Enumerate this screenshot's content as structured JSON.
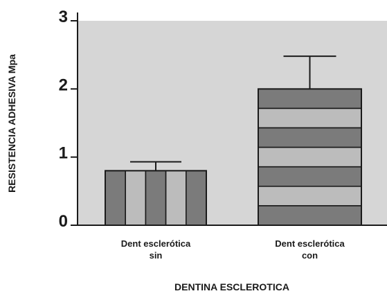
{
  "chart_data": {
    "type": "bar",
    "title": "",
    "xlabel": "DENTINA ESCLEROTICA",
    "ylabel": "RESISTENCIA ADHESIVA Mpa",
    "ylim": [
      0,
      3
    ],
    "yticks": [
      "0",
      "1",
      "2",
      "3"
    ],
    "categories": [
      [
        "Dent esclerótica",
        "sin"
      ],
      [
        "Dent esclerótica",
        "con"
      ]
    ],
    "values": [
      0.8,
      2.0
    ],
    "error_upper": [
      0.13,
      0.48
    ],
    "grid": false,
    "colors": {
      "plot_background": "#d6d6d6",
      "bar_dark": "#7b7b7b",
      "bar_light": "#bcbcbc",
      "outline": "#1a1a1a"
    }
  }
}
